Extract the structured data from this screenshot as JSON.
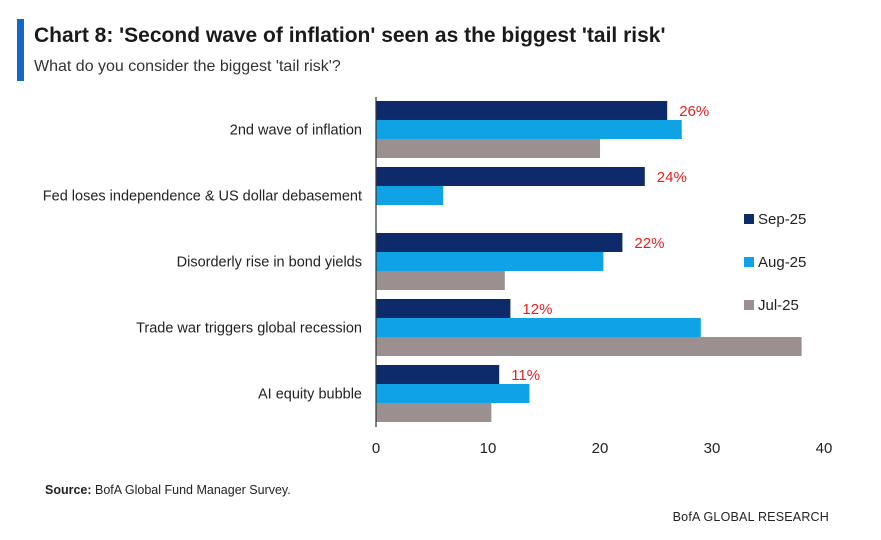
{
  "header": {
    "title": "Chart 8: 'Second wave of inflation' seen as the biggest 'tail risk'",
    "subtitle": "What do you consider the biggest 'tail risk'?"
  },
  "footer": {
    "source_label": "Source:",
    "source_text": " BofA Global Fund Manager Survey.",
    "brand": "BofA GLOBAL RESEARCH"
  },
  "chart_data": {
    "type": "bar",
    "orientation": "horizontal",
    "categories": [
      "2nd wave of inflation",
      "Fed loses independence & US dollar debasement",
      "Disorderly rise in bond yields",
      "Trade war triggers global recession",
      "AI equity bubble"
    ],
    "series": [
      {
        "name": "Sep-25",
        "color": "#0d2a6b",
        "values": [
          26,
          24,
          22,
          12,
          11
        ],
        "labels": [
          "26%",
          "24%",
          "22%",
          "12%",
          "11%"
        ]
      },
      {
        "name": "Aug-25",
        "color": "#0fa3e6",
        "values": [
          27.3,
          6,
          20.3,
          29,
          13.7
        ]
      },
      {
        "name": "Jul-25",
        "color": "#9b8f8f",
        "values": [
          20,
          null,
          11.5,
          38,
          10.3
        ]
      }
    ],
    "xlim": [
      0,
      40
    ],
    "xticks": [
      0,
      10,
      20,
      30,
      40
    ],
    "data_label_color": "#e02020",
    "legend_position": "right",
    "grid": false
  }
}
